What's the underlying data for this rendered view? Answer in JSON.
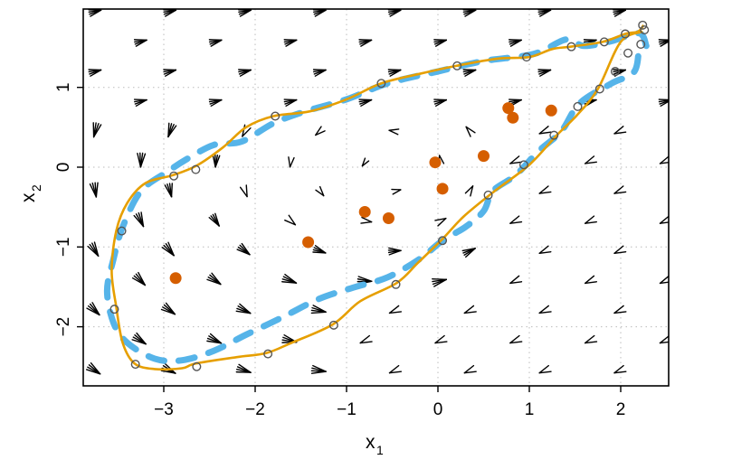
{
  "chart_data": {
    "type": "scatter",
    "title": "",
    "xlabel": "x",
    "xlabel_subscript": "1",
    "ylabel": "x",
    "ylabel_subscript": "2",
    "xlim": [
      -3.88,
      2.52
    ],
    "ylim": [
      -2.73,
      1.99
    ],
    "xticks": [
      -3,
      -2,
      -1,
      0,
      1,
      2
    ],
    "yticks": [
      -2,
      -1,
      0,
      1
    ],
    "xtick_labels": [
      "−3",
      "−2",
      "−1",
      "0",
      "1",
      "2"
    ],
    "ytick_labels": [
      "−2",
      "−1",
      "0",
      "1"
    ],
    "grid": true,
    "legend": null,
    "colors": {
      "observed_points": "#D55E00",
      "fitted_curve": "#E69F00",
      "dashed_trajectory": "#56B4E9",
      "sample_circles": "#555555",
      "vector_field": "#000000",
      "grid": "#BBBBBB"
    },
    "series": [
      {
        "name": "observed_points",
        "type": "scatter",
        "points": [
          [
            -2.87,
            -1.39
          ],
          [
            -1.42,
            -0.94
          ],
          [
            -0.8,
            -0.56
          ],
          [
            -0.54,
            -0.64
          ],
          [
            -0.03,
            0.06
          ],
          [
            0.05,
            -0.27
          ],
          [
            0.5,
            0.14
          ],
          [
            0.77,
            0.74
          ],
          [
            0.82,
            0.62
          ],
          [
            1.24,
            0.71
          ]
        ]
      },
      {
        "name": "fitted_curve",
        "type": "line",
        "points": [
          [
            2.24,
            1.7
          ],
          [
            2.0,
            1.57
          ],
          [
            1.75,
            0.98
          ],
          [
            1.52,
            0.65
          ],
          [
            1.3,
            0.4
          ],
          [
            1.0,
            0.03
          ],
          [
            0.62,
            -0.3
          ],
          [
            0.28,
            -0.62
          ],
          [
            0.05,
            -0.9
          ],
          [
            -0.22,
            -1.2
          ],
          [
            -0.45,
            -1.45
          ],
          [
            -0.85,
            -1.68
          ],
          [
            -1.15,
            -1.97
          ],
          [
            -1.6,
            -2.2
          ],
          [
            -1.88,
            -2.33
          ],
          [
            -2.2,
            -2.38
          ],
          [
            -2.65,
            -2.46
          ],
          [
            -2.8,
            -2.52
          ],
          [
            -3.1,
            -2.53
          ],
          [
            -3.32,
            -2.46
          ],
          [
            -3.45,
            -2.2
          ],
          [
            -3.52,
            -1.75
          ],
          [
            -3.57,
            -1.3
          ],
          [
            -3.52,
            -0.8
          ],
          [
            -3.4,
            -0.45
          ],
          [
            -3.2,
            -0.2
          ],
          [
            -2.9,
            -0.1
          ],
          [
            -2.64,
            0.02
          ],
          [
            -2.35,
            0.25
          ],
          [
            -2.1,
            0.5
          ],
          [
            -1.8,
            0.64
          ],
          [
            -1.4,
            0.7
          ],
          [
            -1.0,
            0.85
          ],
          [
            -0.62,
            1.05
          ],
          [
            -0.2,
            1.17
          ],
          [
            0.2,
            1.27
          ],
          [
            0.65,
            1.36
          ],
          [
            1.0,
            1.38
          ],
          [
            1.25,
            1.48
          ],
          [
            1.45,
            1.51
          ],
          [
            1.8,
            1.57
          ],
          [
            2.05,
            1.67
          ],
          [
            2.19,
            1.7
          ],
          [
            2.25,
            1.78
          ]
        ]
      },
      {
        "name": "sample_circles",
        "type": "scatter",
        "points": [
          [
            2.24,
            1.78
          ],
          [
            2.26,
            1.72
          ],
          [
            2.22,
            1.54
          ],
          [
            2.08,
            1.43
          ],
          [
            1.94,
            1.2
          ],
          [
            1.77,
            0.98
          ],
          [
            1.53,
            0.76
          ],
          [
            1.27,
            0.4
          ],
          [
            0.94,
            0.03
          ],
          [
            0.55,
            -0.35
          ],
          [
            0.05,
            -0.92
          ],
          [
            -0.46,
            -1.47
          ],
          [
            -1.14,
            -1.98
          ],
          [
            -1.86,
            -2.34
          ],
          [
            -2.64,
            -2.5
          ],
          [
            -3.31,
            -2.47
          ],
          [
            -3.54,
            -1.78
          ],
          [
            -3.46,
            -0.8
          ],
          [
            -2.89,
            -0.11
          ],
          [
            -2.65,
            -0.03
          ],
          [
            -1.78,
            0.64
          ],
          [
            -0.62,
            1.05
          ],
          [
            0.21,
            1.27
          ],
          [
            0.97,
            1.38
          ],
          [
            1.46,
            1.51
          ],
          [
            1.82,
            1.57
          ],
          [
            2.05,
            1.67
          ]
        ]
      },
      {
        "name": "dashed_trajectory",
        "type": "line",
        "style": "dashed",
        "points": [
          [
            2.28,
            1.52
          ],
          [
            2.2,
            1.68
          ],
          [
            1.9,
            1.58
          ],
          [
            1.6,
            1.52
          ],
          [
            1.4,
            1.6
          ],
          [
            1.05,
            1.42
          ],
          [
            0.5,
            1.33
          ],
          [
            0.0,
            1.2
          ],
          [
            -0.55,
            1.05
          ],
          [
            -1.0,
            0.85
          ],
          [
            -1.45,
            0.7
          ],
          [
            -1.8,
            0.55
          ],
          [
            -2.15,
            0.32
          ],
          [
            -2.45,
            0.28
          ],
          [
            -2.75,
            0.1
          ],
          [
            -2.95,
            -0.05
          ],
          [
            -3.25,
            -0.3
          ],
          [
            -3.45,
            -0.75
          ],
          [
            -3.55,
            -1.15
          ],
          [
            -3.62,
            -1.55
          ],
          [
            -3.55,
            -1.95
          ],
          [
            -3.4,
            -2.2
          ],
          [
            -3.1,
            -2.4
          ],
          [
            -2.8,
            -2.42
          ],
          [
            -2.45,
            -2.3
          ],
          [
            -2.1,
            -2.1
          ],
          [
            -1.7,
            -1.88
          ],
          [
            -1.3,
            -1.65
          ],
          [
            -0.9,
            -1.5
          ],
          [
            -0.55,
            -1.38
          ],
          [
            -0.2,
            -1.15
          ],
          [
            0.05,
            -0.92
          ],
          [
            0.3,
            -0.75
          ],
          [
            0.5,
            -0.55
          ],
          [
            0.6,
            -0.3
          ],
          [
            0.85,
            -0.1
          ],
          [
            1.1,
            0.2
          ],
          [
            1.35,
            0.45
          ],
          [
            1.55,
            0.8
          ],
          [
            1.9,
            1.05
          ],
          [
            2.15,
            1.2
          ],
          [
            2.2,
            1.55
          ]
        ]
      },
      {
        "name": "vector_field",
        "type": "quiver",
        "description": "Staggered grid of arrowheads showing flow direction: rightward along the top, up-left on the left side, down-left on the bottom-right, circulating counterclockwise around the limit cycle."
      }
    ]
  }
}
